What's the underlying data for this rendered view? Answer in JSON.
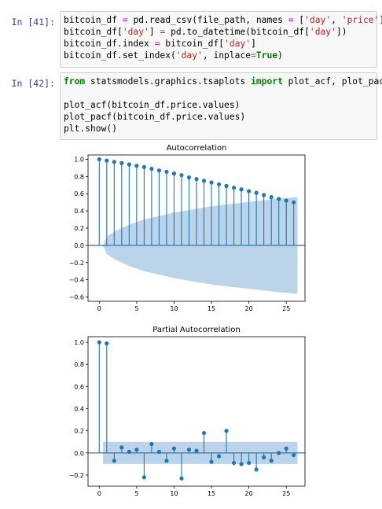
{
  "cells": [
    {
      "prompt": "In [41]:",
      "lines": [
        [
          [
            "t",
            "bitcoin_df "
          ],
          [
            "op",
            "="
          ],
          [
            "t",
            " pd.read_csv(file_path, names "
          ],
          [
            "op",
            "="
          ],
          [
            "t",
            " ["
          ],
          [
            "str",
            "'day'"
          ],
          [
            "t",
            ", "
          ],
          [
            "str",
            "'price'"
          ],
          [
            "t",
            "])"
          ]
        ],
        [
          [
            "t",
            "bitcoin_df["
          ],
          [
            "str",
            "'day'"
          ],
          [
            "t",
            "] "
          ],
          [
            "op",
            "="
          ],
          [
            "t",
            " pd.to_datetime(bitcoin_df["
          ],
          [
            "str",
            "'day'"
          ],
          [
            "t",
            "])"
          ]
        ],
        [
          [
            "t",
            "bitcoin_df.index "
          ],
          [
            "op",
            "="
          ],
          [
            "t",
            " bitcoin_df["
          ],
          [
            "str",
            "'day'"
          ],
          [
            "t",
            "]"
          ]
        ],
        [
          [
            "t",
            "bitcoin_df.set_index("
          ],
          [
            "str",
            "'day'"
          ],
          [
            "t",
            ", inplace"
          ],
          [
            "op",
            "="
          ],
          [
            "kw",
            "True"
          ],
          [
            "t",
            ")"
          ]
        ]
      ]
    },
    {
      "prompt": "In [42]:",
      "lines": [
        [
          [
            "kw",
            "from"
          ],
          [
            "t",
            " statsmodels.graphics.tsaplots "
          ],
          [
            "kw",
            "import"
          ],
          [
            "t",
            " plot_acf, plot_pacf"
          ]
        ],
        [
          [
            "t",
            ""
          ]
        ],
        [
          [
            "t",
            "plot_acf(bitcoin_df.price.values)"
          ]
        ],
        [
          [
            "t",
            "plot_pacf(bitcoin_df.price.values)"
          ]
        ],
        [
          [
            "t",
            "plt.show()"
          ]
        ]
      ]
    }
  ],
  "colors": {
    "stem": "#1f77b4",
    "band": "#bcd4ea",
    "prompt": "#303f9f",
    "keyword": "#008000",
    "string": "#ba2121"
  },
  "chart_data": [
    {
      "type": "stem",
      "title": "Autocorrelation",
      "x": [
        0,
        1,
        2,
        3,
        4,
        5,
        6,
        7,
        8,
        9,
        10,
        11,
        12,
        13,
        14,
        15,
        16,
        17,
        18,
        19,
        20,
        21,
        22,
        23,
        24,
        25,
        26
      ],
      "values": [
        1.0,
        0.985,
        0.97,
        0.955,
        0.94,
        0.925,
        0.91,
        0.89,
        0.87,
        0.855,
        0.835,
        0.815,
        0.79,
        0.77,
        0.75,
        0.73,
        0.71,
        0.69,
        0.67,
        0.65,
        0.63,
        0.61,
        0.585,
        0.56,
        0.54,
        0.52,
        0.5
      ],
      "confidence_band": [
        0.0,
        0.1,
        0.16,
        0.2,
        0.24,
        0.27,
        0.3,
        0.32,
        0.34,
        0.36,
        0.38,
        0.395,
        0.41,
        0.425,
        0.44,
        0.455,
        0.465,
        0.475,
        0.485,
        0.495,
        0.505,
        0.515,
        0.525,
        0.535,
        0.545,
        0.55,
        0.56
      ],
      "yticks": [
        "1.0",
        "0.8",
        "0.6",
        "0.4",
        "0.2",
        "0.0",
        "−0.2",
        "−0.4",
        "−0.6"
      ],
      "xticks": [
        "0",
        "5",
        "10",
        "15",
        "20",
        "25"
      ],
      "ylim": [
        -0.65,
        1.05
      ],
      "xlim": [
        -1.5,
        27.5
      ]
    },
    {
      "type": "stem",
      "title": "Partial Autocorrelation",
      "x": [
        0,
        1,
        2,
        3,
        4,
        5,
        6,
        7,
        8,
        9,
        10,
        11,
        12,
        13,
        14,
        15,
        16,
        17,
        18,
        19,
        20,
        21,
        22,
        23,
        24,
        25,
        26
      ],
      "values": [
        1.0,
        0.99,
        -0.07,
        0.05,
        0.01,
        0.03,
        -0.22,
        0.08,
        0.01,
        -0.07,
        0.04,
        -0.23,
        0.03,
        0.02,
        0.18,
        -0.08,
        -0.03,
        0.2,
        -0.09,
        -0.1,
        -0.09,
        -0.15,
        -0.04,
        -0.07,
        0.0,
        0.04,
        -0.02
      ],
      "confidence_band": 0.1,
      "yticks": [
        "1.0",
        "0.8",
        "0.6",
        "0.4",
        "0.2",
        "0.0",
        "−0.2"
      ],
      "xticks": [
        "0",
        "5",
        "10",
        "15",
        "20",
        "25"
      ],
      "ylim": [
        -0.3,
        1.05
      ],
      "xlim": [
        -1.5,
        27.5
      ]
    }
  ]
}
